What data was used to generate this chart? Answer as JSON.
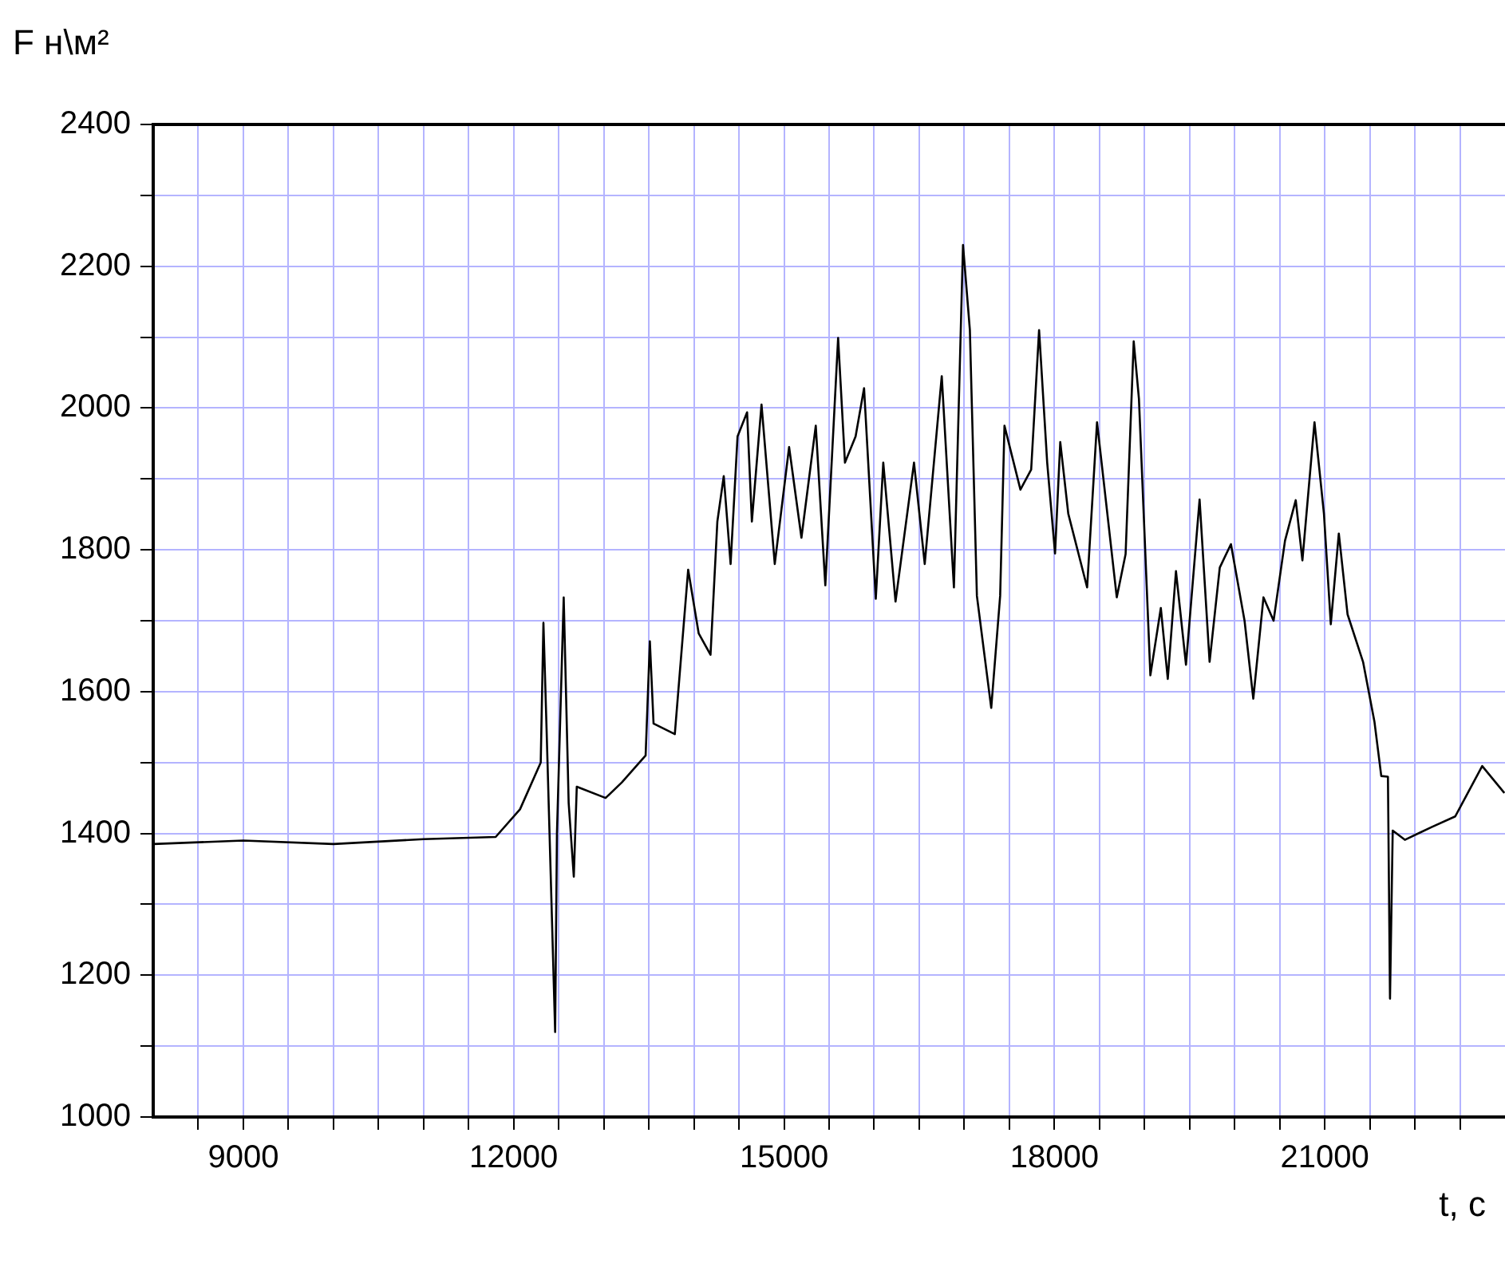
{
  "chart_data": {
    "type": "line",
    "xlabel": "t, c",
    "ylabel": "F н\\м²",
    "xlim": [
      8000,
      23000
    ],
    "ylim": [
      1000,
      2400
    ],
    "xticks": [
      {
        "value": 8500,
        "label": null
      },
      9000,
      {
        "value": 9500,
        "label": null
      },
      {
        "value": 10000,
        "label": null
      },
      {
        "value": 10500,
        "label": null
      },
      {
        "value": 11000,
        "label": null
      },
      {
        "value": 11500,
        "label": null
      },
      12000,
      {
        "value": 12500,
        "label": null
      },
      {
        "value": 13000,
        "label": null
      },
      {
        "value": 13500,
        "label": null
      },
      {
        "value": 14000,
        "label": null
      },
      {
        "value": 14500,
        "label": null
      },
      15000,
      {
        "value": 15500,
        "label": null
      },
      {
        "value": 16000,
        "label": null
      },
      {
        "value": 16500,
        "label": null
      },
      {
        "value": 17000,
        "label": null
      },
      {
        "value": 17500,
        "label": null
      },
      18000,
      {
        "value": 18500,
        "label": null
      },
      {
        "value": 19000,
        "label": null
      },
      {
        "value": 19500,
        "label": null
      },
      {
        "value": 20000,
        "label": null
      },
      {
        "value": 20500,
        "label": null
      },
      21000,
      {
        "value": 21500,
        "label": null
      },
      {
        "value": 22000,
        "label": null
      },
      {
        "value": 22500,
        "label": null
      }
    ],
    "yticks": [
      1000,
      {
        "value": 1100,
        "label": null
      },
      1200,
      {
        "value": 1300,
        "label": null
      },
      1400,
      {
        "value": 1500,
        "label": null
      },
      1600,
      {
        "value": 1700,
        "label": null
      },
      1800,
      {
        "value": 1900,
        "label": null
      },
      2000,
      {
        "value": 2100,
        "label": null
      },
      2200,
      {
        "value": 2300,
        "label": null
      },
      2400
    ],
    "grid": true,
    "legend": false,
    "marker": "none",
    "line_style": "solid",
    "series": [
      {
        "color": "#000000",
        "x": [
          8000,
          9000,
          10000,
          11000,
          11800,
          12070,
          12300,
          12330,
          12365,
          12460,
          12480,
          12555,
          12610,
          12667,
          12700,
          13020,
          13200,
          13464,
          13511,
          13552,
          13788,
          13936,
          14053,
          14184,
          14260,
          14331,
          14407,
          14484,
          14590,
          14643,
          14750,
          14897,
          15056,
          15193,
          15352,
          15458,
          15600,
          15676,
          15794,
          15888,
          16018,
          16101,
          16237,
          16442,
          16561,
          16750,
          16885,
          16986,
          17062,
          17140,
          17299,
          17398,
          17446,
          17623,
          17742,
          17830,
          17920,
          18007,
          18065,
          18154,
          18363,
          18473,
          18692,
          18790,
          18880,
          18938,
          19065,
          19181,
          19258,
          19349,
          19460,
          19611,
          19722,
          19835,
          19959,
          20110,
          20207,
          20320,
          20432,
          20559,
          20678,
          20752,
          20886,
          20991,
          21067,
          21156,
          21253,
          21425,
          21552,
          21627,
          21701,
          21724,
          21754,
          21889,
          22186,
          22448,
          22747,
          22993
        ],
        "values": [
          1385,
          1390,
          1385,
          1392,
          1395,
          1434,
          1500,
          1697,
          1547,
          1120,
          1400,
          1733,
          1443,
          1339,
          1466,
          1450,
          1472,
          1510,
          1671,
          1555,
          1540,
          1772,
          1682,
          1652,
          1840,
          1904,
          1780,
          1960,
          1994,
          1840,
          2005,
          1780,
          1945,
          1817,
          1975,
          1750,
          2099,
          1923,
          1960,
          2028,
          1731,
          1923,
          1727,
          1923,
          1780,
          2045,
          1747,
          2230,
          2110,
          1735,
          1577,
          1735,
          1975,
          1885,
          1913,
          2110,
          1923,
          1795,
          1952,
          1851,
          1747,
          1980,
          1733,
          1794,
          2094,
          2013,
          1623,
          1718,
          1618,
          1770,
          1638,
          1871,
          1642,
          1775,
          1808,
          1700,
          1590,
          1733,
          1700,
          1813,
          1870,
          1785,
          1980,
          1851,
          1695,
          1823,
          1709,
          1642,
          1557,
          1481,
          1480,
          1167,
          1404,
          1391,
          1409,
          1424,
          1495,
          1457
        ]
      }
    ]
  }
}
